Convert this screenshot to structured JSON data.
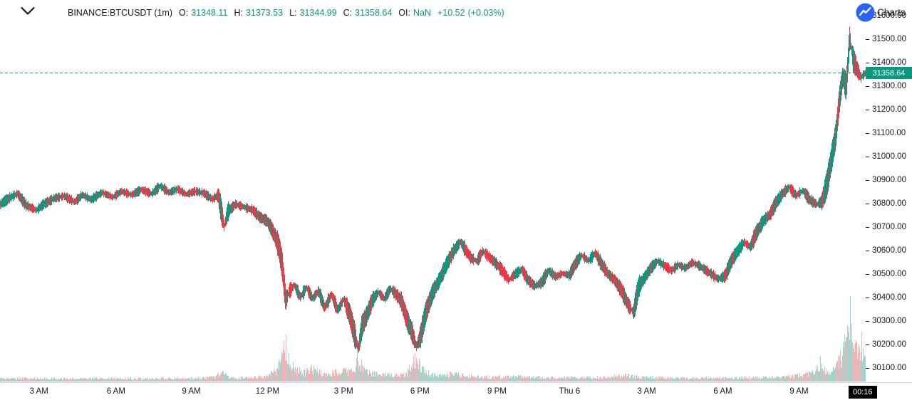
{
  "colors": {
    "up": "#089981",
    "down": "#f23645",
    "volume_up": "rgba(8,153,129,0.4)",
    "volume_down": "rgba(242,54,69,0.4)",
    "axis_text": "#131722",
    "last_price_badge_bg": "#089981",
    "countdown_bg": "#000000",
    "tv_logo_blue": "#2962ff"
  },
  "icons": {
    "legend_collapse": "chevron-down",
    "logo": "tradingview-logo"
  },
  "legend": {
    "symbol": "BINANCE:BTCUSDT (1m)",
    "o_label": "O:",
    "o": "31348.11",
    "h_label": "H:",
    "h": "31373.53",
    "l_label": "L:",
    "l": "31344.99",
    "c_label": "C:",
    "c": "31358.64",
    "oi_label": "OI:",
    "oi": "NaN",
    "change": "+10.52",
    "change_pct": "(+0.03%)"
  },
  "attribution": {
    "label": "Charts"
  },
  "axis": {
    "countdown": "00:16"
  },
  "chart_data": {
    "type": "candlestick",
    "symbol": "BINANCE:BTCUSDT",
    "interval": "1m",
    "ohlc": {
      "open": 31348.11,
      "high": 31373.53,
      "low": 31344.99,
      "close": 31358.64
    },
    "oi": "NaN",
    "change": 10.52,
    "change_pct": 0.03,
    "last_price": 31358.64,
    "last_price_label": "31358.64",
    "ylim": [
      30100,
      31600
    ],
    "grid": "off",
    "y_ticks": [
      "31600.00",
      "31500.00",
      "31400.00",
      "31300.00",
      "31200.00",
      "31100.00",
      "31000.00",
      "30900.00",
      "30800.00",
      "30700.00",
      "30600.00",
      "30500.00",
      "30400.00",
      "30300.00",
      "30200.00",
      "30100.00"
    ],
    "x_ticks": [
      {
        "label": "3 AM",
        "f": 0.045
      },
      {
        "label": "6 AM",
        "f": 0.134
      },
      {
        "label": "9 AM",
        "f": 0.221
      },
      {
        "label": "12 PM",
        "f": 0.309
      },
      {
        "label": "3 PM",
        "f": 0.397
      },
      {
        "label": "6 PM",
        "f": 0.485
      },
      {
        "label": "9 PM",
        "f": 0.574
      },
      {
        "label": "Thu 6",
        "f": 0.658
      },
      {
        "label": "3 AM",
        "f": 0.747
      },
      {
        "label": "6 AM",
        "f": 0.835
      },
      {
        "label": "9 AM",
        "f": 0.923
      }
    ],
    "price_path": [
      [
        0,
        30800
      ],
      [
        0.012,
        30830
      ],
      [
        0.02,
        30845
      ],
      [
        0.03,
        30795
      ],
      [
        0.042,
        30775
      ],
      [
        0.05,
        30800
      ],
      [
        0.062,
        30825
      ],
      [
        0.074,
        30835
      ],
      [
        0.086,
        30810
      ],
      [
        0.095,
        30840
      ],
      [
        0.105,
        30820
      ],
      [
        0.118,
        30850
      ],
      [
        0.13,
        30830
      ],
      [
        0.14,
        30855
      ],
      [
        0.152,
        30840
      ],
      [
        0.163,
        30862
      ],
      [
        0.175,
        30845
      ],
      [
        0.185,
        30878
      ],
      [
        0.195,
        30850
      ],
      [
        0.205,
        30865
      ],
      [
        0.215,
        30842
      ],
      [
        0.225,
        30855
      ],
      [
        0.235,
        30848
      ],
      [
        0.245,
        30822
      ],
      [
        0.252,
        30838
      ],
      [
        0.259,
        30705
      ],
      [
        0.263,
        30768
      ],
      [
        0.272,
        30800
      ],
      [
        0.282,
        30788
      ],
      [
        0.292,
        30775
      ],
      [
        0.3,
        30745
      ],
      [
        0.308,
        30730
      ],
      [
        0.313,
        30700
      ],
      [
        0.318,
        30660
      ],
      [
        0.322,
        30620
      ],
      [
        0.326,
        30540
      ],
      [
        0.33,
        30390
      ],
      [
        0.334,
        30430
      ],
      [
        0.34,
        30455
      ],
      [
        0.347,
        30405
      ],
      [
        0.354,
        30445
      ],
      [
        0.361,
        30400
      ],
      [
        0.368,
        30430
      ],
      [
        0.375,
        30360
      ],
      [
        0.383,
        30415
      ],
      [
        0.39,
        30350
      ],
      [
        0.397,
        30395
      ],
      [
        0.404,
        30330
      ],
      [
        0.41,
        30240
      ],
      [
        0.414,
        30185
      ],
      [
        0.418,
        30280
      ],
      [
        0.424,
        30330
      ],
      [
        0.43,
        30390
      ],
      [
        0.437,
        30425
      ],
      [
        0.444,
        30398
      ],
      [
        0.451,
        30440
      ],
      [
        0.458,
        30415
      ],
      [
        0.464,
        30385
      ],
      [
        0.47,
        30310
      ],
      [
        0.476,
        30255
      ],
      [
        0.481,
        30195
      ],
      [
        0.486,
        30240
      ],
      [
        0.492,
        30340
      ],
      [
        0.5,
        30425
      ],
      [
        0.508,
        30480
      ],
      [
        0.516,
        30545
      ],
      [
        0.524,
        30600
      ],
      [
        0.532,
        30640
      ],
      [
        0.538,
        30605
      ],
      [
        0.544,
        30572
      ],
      [
        0.551,
        30558
      ],
      [
        0.558,
        30600
      ],
      [
        0.565,
        30575
      ],
      [
        0.572,
        30552
      ],
      [
        0.58,
        30520
      ],
      [
        0.588,
        30478
      ],
      [
        0.595,
        30502
      ],
      [
        0.603,
        30522
      ],
      [
        0.61,
        30478
      ],
      [
        0.618,
        30452
      ],
      [
        0.626,
        30468
      ],
      [
        0.634,
        30518
      ],
      [
        0.642,
        30492
      ],
      [
        0.65,
        30505
      ],
      [
        0.658,
        30498
      ],
      [
        0.665,
        30548
      ],
      [
        0.672,
        30582
      ],
      [
        0.68,
        30560
      ],
      [
        0.688,
        30592
      ],
      [
        0.695,
        30545
      ],
      [
        0.703,
        30502
      ],
      [
        0.71,
        30478
      ],
      [
        0.718,
        30435
      ],
      [
        0.726,
        30372
      ],
      [
        0.732,
        30340
      ],
      [
        0.738,
        30448
      ],
      [
        0.745,
        30488
      ],
      [
        0.752,
        30528
      ],
      [
        0.76,
        30558
      ],
      [
        0.768,
        30538
      ],
      [
        0.776,
        30518
      ],
      [
        0.784,
        30542
      ],
      [
        0.792,
        30528
      ],
      [
        0.8,
        30552
      ],
      [
        0.808,
        30538
      ],
      [
        0.816,
        30518
      ],
      [
        0.824,
        30498
      ],
      [
        0.83,
        30482
      ],
      [
        0.838,
        30495
      ],
      [
        0.845,
        30558
      ],
      [
        0.852,
        30598
      ],
      [
        0.86,
        30638
      ],
      [
        0.867,
        30618
      ],
      [
        0.874,
        30678
      ],
      [
        0.882,
        30728
      ],
      [
        0.89,
        30758
      ],
      [
        0.897,
        30808
      ],
      [
        0.905,
        30848
      ],
      [
        0.912,
        30872
      ],
      [
        0.92,
        30838
      ],
      [
        0.928,
        30858
      ],
      [
        0.936,
        30818
      ],
      [
        0.944,
        30800
      ],
      [
        0.95,
        30812
      ],
      [
        0.956,
        30892
      ],
      [
        0.961,
        30995
      ],
      [
        0.966,
        31095
      ],
      [
        0.97,
        31240
      ],
      [
        0.974,
        31345
      ],
      [
        0.978,
        31298
      ],
      [
        0.982,
        31510
      ],
      [
        0.986,
        31415
      ],
      [
        0.99,
        31380
      ],
      [
        0.995,
        31340
      ],
      [
        1,
        31358.64
      ]
    ],
    "volume_path": [
      [
        0,
        0.045
      ],
      [
        0.04,
        0.05
      ],
      [
        0.08,
        0.045
      ],
      [
        0.12,
        0.05
      ],
      [
        0.16,
        0.045
      ],
      [
        0.2,
        0.05
      ],
      [
        0.24,
        0.055
      ],
      [
        0.258,
        0.13
      ],
      [
        0.265,
        0.06
      ],
      [
        0.29,
        0.055
      ],
      [
        0.31,
        0.09
      ],
      [
        0.318,
        0.16
      ],
      [
        0.325,
        0.34
      ],
      [
        0.33,
        0.62
      ],
      [
        0.335,
        0.3
      ],
      [
        0.342,
        0.18
      ],
      [
        0.35,
        0.13
      ],
      [
        0.36,
        0.2
      ],
      [
        0.37,
        0.13
      ],
      [
        0.38,
        0.11
      ],
      [
        0.39,
        0.15
      ],
      [
        0.4,
        0.17
      ],
      [
        0.408,
        0.13
      ],
      [
        0.413,
        0.4
      ],
      [
        0.42,
        0.17
      ],
      [
        0.43,
        0.11
      ],
      [
        0.445,
        0.12
      ],
      [
        0.46,
        0.09
      ],
      [
        0.47,
        0.11
      ],
      [
        0.479,
        0.36
      ],
      [
        0.487,
        0.22
      ],
      [
        0.495,
        0.13
      ],
      [
        0.51,
        0.1
      ],
      [
        0.525,
        0.11
      ],
      [
        0.54,
        0.09
      ],
      [
        0.56,
        0.07
      ],
      [
        0.58,
        0.07
      ],
      [
        0.6,
        0.08
      ],
      [
        0.62,
        0.06
      ],
      [
        0.65,
        0.06
      ],
      [
        0.68,
        0.06
      ],
      [
        0.7,
        0.07
      ],
      [
        0.726,
        0.1
      ],
      [
        0.74,
        0.07
      ],
      [
        0.76,
        0.06
      ],
      [
        0.78,
        0.055
      ],
      [
        0.8,
        0.05
      ],
      [
        0.82,
        0.055
      ],
      [
        0.84,
        0.05
      ],
      [
        0.86,
        0.06
      ],
      [
        0.88,
        0.06
      ],
      [
        0.9,
        0.07
      ],
      [
        0.92,
        0.09
      ],
      [
        0.935,
        0.11
      ],
      [
        0.948,
        0.3
      ],
      [
        0.955,
        0.14
      ],
      [
        0.962,
        0.18
      ],
      [
        0.968,
        0.28
      ],
      [
        0.973,
        0.4
      ],
      [
        0.978,
        0.6
      ],
      [
        0.983,
        1.0
      ],
      [
        0.987,
        0.62
      ],
      [
        0.991,
        0.48
      ],
      [
        0.995,
        0.58
      ],
      [
        1,
        0.42
      ]
    ]
  }
}
